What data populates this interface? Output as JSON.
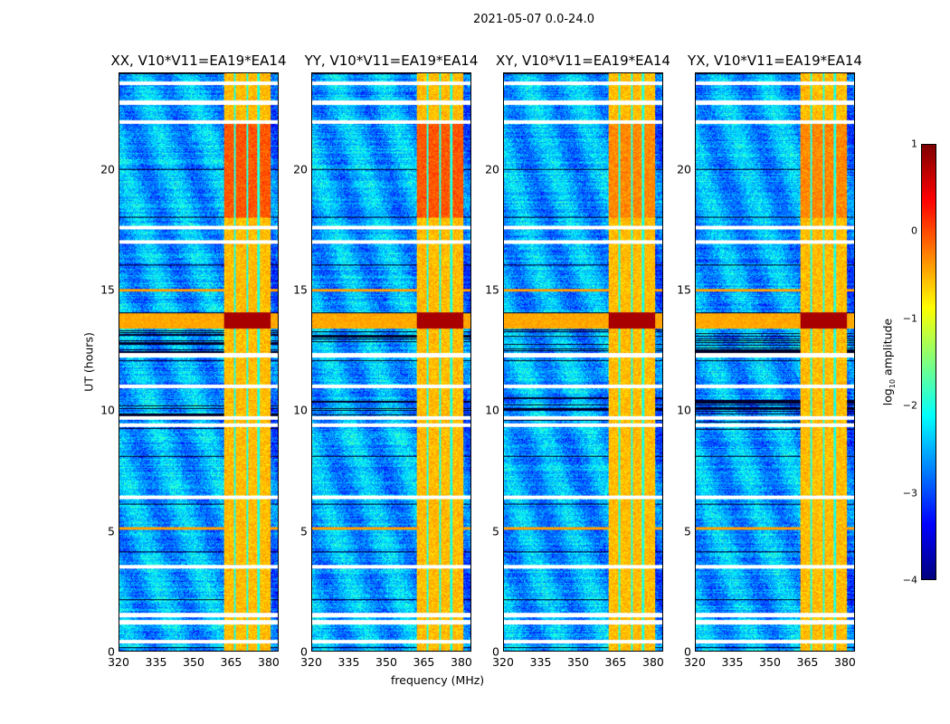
{
  "suptitle": "2021-05-07 0.0-24.0",
  "chart_data": {
    "type": "heatmap",
    "xlabel": "frequency (MHz)",
    "ylabel": "UT (hours)",
    "xlim": [
      320,
      384
    ],
    "ylim": [
      0,
      24
    ],
    "xticks": [
      "320",
      "335",
      "350",
      "365",
      "380"
    ],
    "xtick_values": [
      320,
      335,
      350,
      365,
      380
    ],
    "yticks": [
      "0",
      "5",
      "10",
      "15",
      "20"
    ],
    "ytick_values": [
      0,
      5,
      10,
      15,
      20
    ],
    "panels": [
      {
        "title": "XX, V10*V11=EA19*EA14"
      },
      {
        "title": "YY, V10*V11=EA19*EA14"
      },
      {
        "title": "XY, V10*V11=EA19*EA14"
      },
      {
        "title": "YX, V10*V11=EA19*EA14"
      }
    ],
    "colorbar": {
      "label_main": "log",
      "label_sub": "10",
      "label_rest": " amplitude",
      "range": [
        -4,
        1
      ],
      "ticks": [
        "1",
        "0",
        "−1",
        "−2",
        "−3",
        "−4"
      ],
      "tick_values": [
        1,
        0,
        -1,
        -2,
        -3,
        -4
      ],
      "colormap": "jet"
    },
    "features": {
      "rfi_band_mhz": [
        362,
        381
      ],
      "background_log_amp": -3,
      "rfi_band_log_amp": -0.5,
      "strong_event_hours": [
        13.4,
        14.1
      ],
      "flagged_gap_hours": [
        0.4,
        1.2,
        1.5,
        3.5,
        6.4,
        9.4,
        9.7,
        11,
        12.3,
        17,
        17.6,
        22,
        22.8,
        23.6
      ]
    }
  }
}
